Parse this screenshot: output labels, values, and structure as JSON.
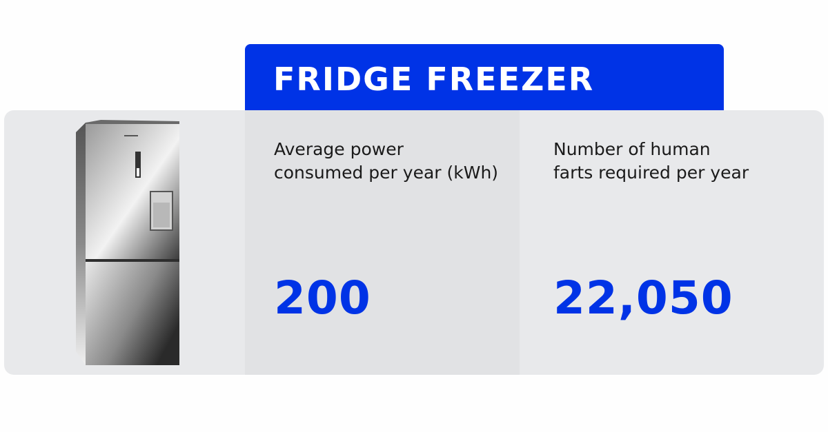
{
  "header": {
    "title": "FRIDGE FREEZER"
  },
  "stats": [
    {
      "label": "Average power\nconsumed per year (kWh)",
      "value": "200"
    },
    {
      "label": "Number of human\nfarts required per year",
      "value": "22,050"
    }
  ],
  "illustration": {
    "name": "fridge-freezer-illustration"
  },
  "colors": {
    "accent": "#0033e6",
    "panel": "#e8e9eb",
    "panel_shaded": "#e1e2e4",
    "text": "#1a1a1a"
  }
}
